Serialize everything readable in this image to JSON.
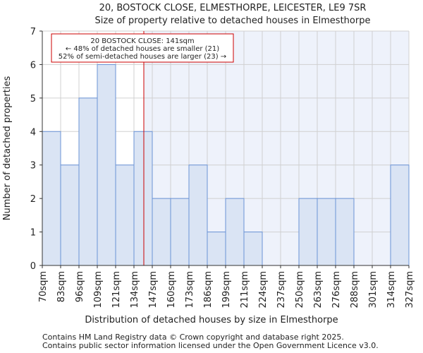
{
  "chart_data": {
    "type": "bar",
    "title": "20, BOSTOCK CLOSE, ELMESTHORPE, LEICESTER, LE9 7SR",
    "subtitle": "Size of property relative to detached houses in Elmesthorpe",
    "xlabel": "Distribution of detached houses by size in Elmesthorpe",
    "ylabel": "Number of detached properties",
    "bin_edges": [
      70,
      83,
      96,
      109,
      121,
      134,
      147,
      160,
      173,
      186,
      199,
      211,
      224,
      237,
      250,
      263,
      276,
      288,
      301,
      314,
      327
    ],
    "tick_labels": [
      "70sqm",
      "83sqm",
      "96sqm",
      "109sqm",
      "121sqm",
      "134sqm",
      "147sqm",
      "160sqm",
      "173sqm",
      "186sqm",
      "199sqm",
      "211sqm",
      "224sqm",
      "237sqm",
      "250sqm",
      "263sqm",
      "276sqm",
      "288sqm",
      "301sqm",
      "314sqm",
      "327sqm"
    ],
    "values": [
      4,
      3,
      5,
      6,
      3,
      4,
      2,
      2,
      3,
      1,
      2,
      1,
      0,
      0,
      2,
      2,
      2,
      0,
      0,
      3
    ],
    "ylim": [
      0,
      7
    ],
    "yticks": [
      0,
      1,
      2,
      3,
      4,
      5,
      6,
      7
    ],
    "grid": true,
    "marker": {
      "value": 141,
      "color": "#cc0000"
    },
    "annotation": {
      "line1": "20 BOSTOCK CLOSE: 141sqm",
      "line2": "← 48% of detached houses are smaller (21)",
      "line3": "52% of semi-detached houses are larger (23) →"
    },
    "colors": {
      "bar_fill": "#dae4f4",
      "bar_stroke": "#6b93d6",
      "highlight_bg": "#eef2fb",
      "grid": "#d0d0d0"
    }
  },
  "footer": {
    "line1": "Contains HM Land Registry data © Crown copyright and database right 2025.",
    "line2": "Contains public sector information licensed under the Open Government Licence v3.0."
  }
}
